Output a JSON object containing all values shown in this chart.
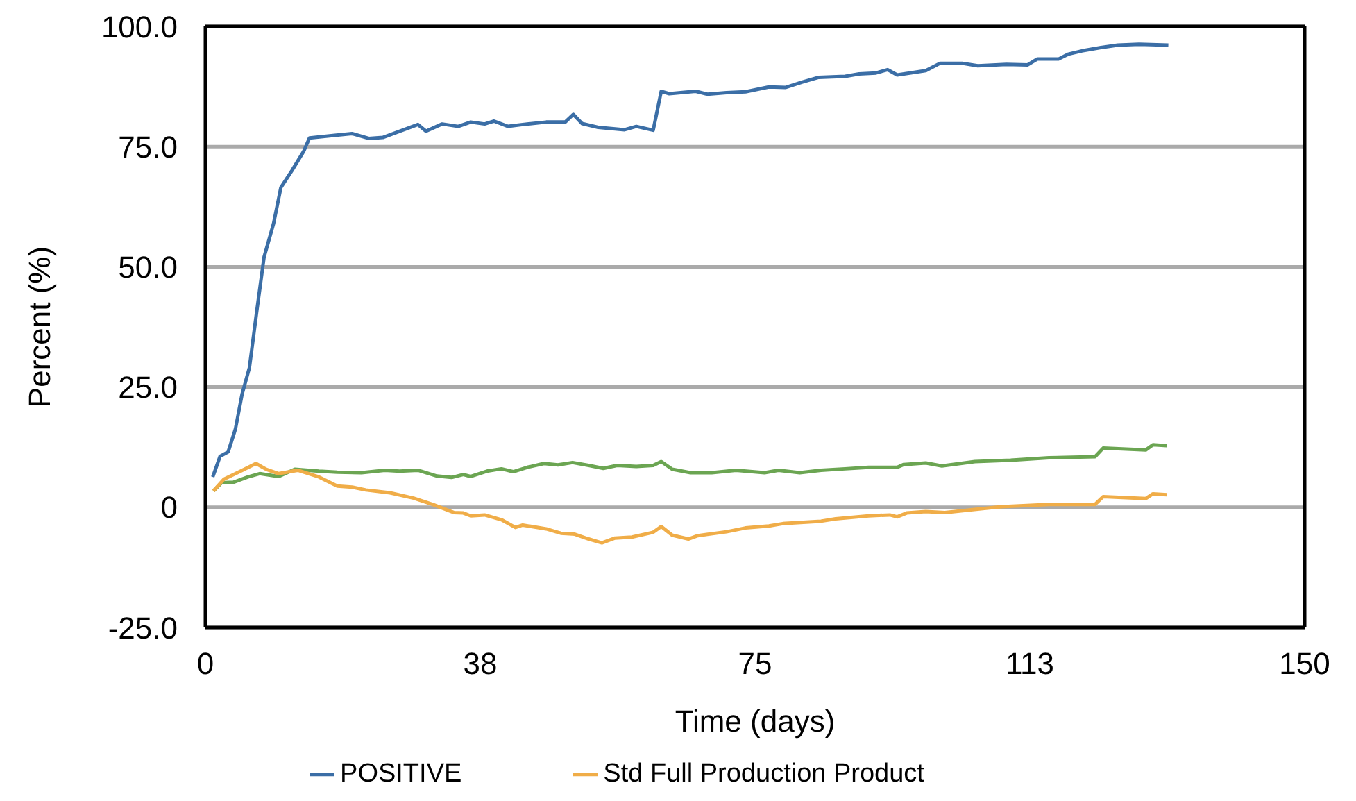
{
  "chart_data": {
    "type": "line",
    "xlabel": "Time (days)",
    "ylabel": "Percent (%)",
    "xlim": [
      0,
      150
    ],
    "xticks": [
      0,
      {
        "value": 37.5,
        "label": "38"
      },
      75,
      {
        "value": 112.5,
        "label": "113"
      },
      150
    ],
    "ylim": [
      -25,
      100
    ],
    "yticks": [
      {
        "value": -25,
        "label": "-25.0"
      },
      0,
      {
        "value": 25,
        "label": "25.0"
      },
      {
        "value": 50,
        "label": "50.0"
      },
      {
        "value": 75,
        "label": "75.0"
      },
      {
        "value": 100,
        "label": "100.0"
      }
    ],
    "grid": "y",
    "legend": "bottom",
    "marker": "none",
    "line_style": "solid",
    "series": [
      {
        "name": "POSITIVE",
        "color": "#3b6ea6",
        "x": [
          1,
          2,
          3.1,
          4.1,
          5,
          6,
          7,
          8,
          9.3,
          10.3,
          11.8,
          13.4,
          14.2,
          17.4,
          20,
          22.3,
          24.2,
          29,
          30.1,
          32.3,
          34.5,
          36.2,
          38.1,
          39.4,
          41.3,
          43.9,
          46.5,
          49.1,
          50.2,
          51.4,
          53.6,
          57.2,
          58.8,
          61.1,
          62.2,
          63.3,
          66.9,
          68.5,
          71.1,
          73.7,
          76.9,
          79.2,
          81.4,
          83.7,
          87.3,
          89.2,
          91.5,
          93.1,
          94.4,
          98.3,
          100.2,
          103.4,
          105.4,
          109.3,
          112.2,
          113.5,
          116.4,
          117.7,
          119.6,
          122.2,
          124.5,
          127.4,
          131.4
        ],
        "values": [
          6.3,
          10.6,
          11.5,
          16.3,
          23.5,
          29,
          40.7,
          52,
          59,
          66.5,
          70,
          74,
          76.8,
          77.3,
          77.7,
          76.7,
          76.9,
          79.6,
          78.2,
          79.7,
          79.2,
          80.1,
          79.7,
          80.3,
          79.2,
          79.7,
          80.1,
          80.1,
          81.7,
          79.8,
          79,
          78.5,
          79.2,
          78.4,
          86.5,
          86,
          86.5,
          85.9,
          86.2,
          86.4,
          87.4,
          87.3,
          88.4,
          89.4,
          89.6,
          90.1,
          90.3,
          91,
          89.9,
          90.8,
          92.3,
          92.3,
          91.8,
          92.1,
          92,
          93.2,
          93.2,
          94.2,
          94.9,
          95.6,
          96.1,
          96.3,
          96.1
        ]
      },
      {
        "color": "#6ba552",
        "x": [
          1.1,
          2.2,
          3.8,
          5.8,
          7.4,
          10,
          12.2,
          15.5,
          18,
          21.3,
          24.5,
          26.5,
          29,
          31.6,
          33.6,
          35.2,
          36.2,
          38.4,
          40.4,
          42,
          43.9,
          46.2,
          48.1,
          50.1,
          52.3,
          54.3,
          56.2,
          58.8,
          61.1,
          62.2,
          63.7,
          66.2,
          69.1,
          72.4,
          76.3,
          78.2,
          81.1,
          84,
          87.3,
          90.5,
          94.4,
          95.3,
          98.3,
          100.5,
          105,
          109.9,
          115.1,
          121.4,
          122.5,
          128.3,
          129.3,
          131.2
        ],
        "values": [
          3.4,
          5.1,
          5.2,
          6.3,
          7,
          6.4,
          7.9,
          7.5,
          7.3,
          7.2,
          7.7,
          7.5,
          7.7,
          6.5,
          6.2,
          6.8,
          6.4,
          7.5,
          8,
          7.4,
          8.3,
          9.1,
          8.8,
          9.3,
          8.7,
          8.1,
          8.7,
          8.5,
          8.7,
          9.5,
          7.9,
          7.2,
          7.2,
          7.7,
          7.2,
          7.7,
          7.2,
          7.7,
          8,
          8.3,
          8.3,
          8.9,
          9.2,
          8.6,
          9.5,
          9.8,
          10.3,
          10.5,
          12.3,
          11.9,
          13,
          12.8
        ]
      },
      {
        "name": "Std Full Production Product",
        "color": "#f0ad48",
        "x": [
          1.1,
          2.5,
          4.8,
          6.9,
          8.3,
          10,
          12.6,
          15.5,
          18,
          20,
          21.9,
          25.2,
          28.4,
          31,
          33.9,
          35.2,
          36.2,
          38.1,
          40.4,
          42.3,
          43.3,
          46.5,
          48.5,
          50.4,
          52.3,
          54.1,
          55.9,
          58.2,
          61.1,
          62.2,
          63.7,
          65.9,
          67.2,
          71.1,
          73.7,
          76.9,
          78.8,
          84,
          86,
          90.5,
          93.4,
          94.4,
          95.7,
          98.3,
          100.9,
          104.7,
          108.6,
          115.1,
          121.4,
          122.5,
          128.3,
          129.3,
          131.2
        ],
        "values": [
          3.4,
          5.8,
          7.5,
          9.1,
          7.9,
          7,
          7.7,
          6.3,
          4.4,
          4.2,
          3.6,
          3,
          1.9,
          0.6,
          -1.1,
          -1.2,
          -1.8,
          -1.6,
          -2.6,
          -4.2,
          -3.7,
          -4.5,
          -5.4,
          -5.6,
          -6.6,
          -7.4,
          -6.4,
          -6.2,
          -5.2,
          -4,
          -5.8,
          -6.6,
          -5.9,
          -5.1,
          -4.3,
          -3.9,
          -3.4,
          -2.9,
          -2.4,
          -1.8,
          -1.6,
          -2,
          -1.2,
          -0.9,
          -1.1,
          -0.5,
          0.1,
          0.6,
          0.6,
          2.2,
          1.8,
          2.8,
          2.6
        ]
      }
    ]
  }
}
